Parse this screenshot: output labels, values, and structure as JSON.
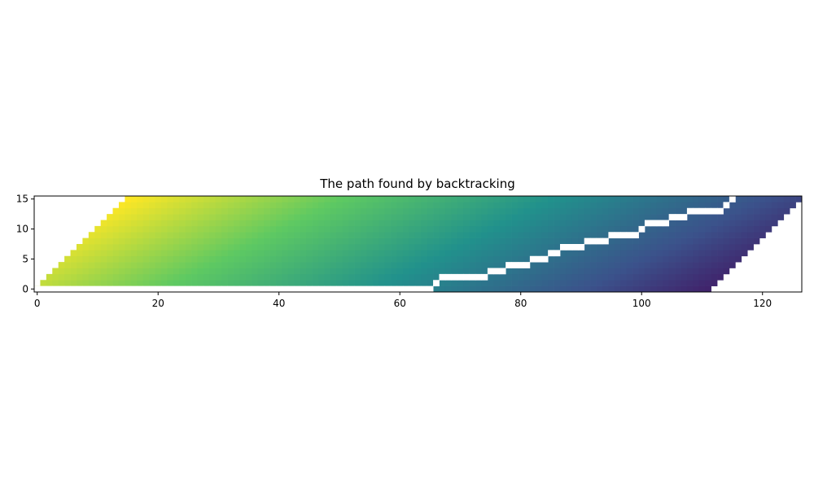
{
  "chart_data": {
    "type": "heatmap",
    "title": "The path found by backtracking",
    "xlabel": "",
    "ylabel": "",
    "x_range": [
      -0.5,
      126.5
    ],
    "y_range": [
      -0.5,
      15.5
    ],
    "x_ticks": [
      0,
      20,
      40,
      60,
      80,
      100,
      120
    ],
    "y_ticks": [
      0,
      5,
      10,
      15
    ],
    "grid": false,
    "legend": "none",
    "colormap": "viridis",
    "rows": 16,
    "columns": 127,
    "path": [
      [
        0,
        0
      ],
      [
        1,
        0
      ],
      [
        2,
        0
      ],
      [
        3,
        0
      ],
      [
        4,
        0
      ],
      [
        5,
        0
      ],
      [
        6,
        0
      ],
      [
        7,
        0
      ],
      [
        8,
        0
      ],
      [
        9,
        0
      ],
      [
        10,
        0
      ],
      [
        11,
        0
      ],
      [
        12,
        0
      ],
      [
        13,
        0
      ],
      [
        14,
        0
      ],
      [
        15,
        0
      ],
      [
        16,
        0
      ],
      [
        17,
        0
      ],
      [
        18,
        0
      ],
      [
        19,
        0
      ],
      [
        20,
        0
      ],
      [
        21,
        0
      ],
      [
        22,
        0
      ],
      [
        23,
        0
      ],
      [
        24,
        0
      ],
      [
        25,
        0
      ],
      [
        26,
        0
      ],
      [
        27,
        0
      ],
      [
        28,
        0
      ],
      [
        29,
        0
      ],
      [
        30,
        0
      ],
      [
        31,
        0
      ],
      [
        32,
        0
      ],
      [
        33,
        0
      ],
      [
        34,
        0
      ],
      [
        35,
        0
      ],
      [
        36,
        0
      ],
      [
        37,
        0
      ],
      [
        38,
        0
      ],
      [
        39,
        0
      ],
      [
        40,
        0
      ],
      [
        41,
        0
      ],
      [
        42,
        0
      ],
      [
        43,
        0
      ],
      [
        44,
        0
      ],
      [
        45,
        0
      ],
      [
        46,
        0
      ],
      [
        47,
        0
      ],
      [
        48,
        0
      ],
      [
        49,
        0
      ],
      [
        50,
        0
      ],
      [
        51,
        0
      ],
      [
        52,
        0
      ],
      [
        53,
        0
      ],
      [
        54,
        0
      ],
      [
        55,
        0
      ],
      [
        56,
        0
      ],
      [
        57,
        0
      ],
      [
        58,
        0
      ],
      [
        59,
        0
      ],
      [
        60,
        0
      ],
      [
        61,
        0
      ],
      [
        62,
        0
      ],
      [
        63,
        0
      ],
      [
        64,
        0
      ],
      [
        65,
        0
      ],
      [
        66,
        1
      ],
      [
        67,
        2
      ],
      [
        68,
        2
      ],
      [
        69,
        2
      ],
      [
        70,
        2
      ],
      [
        71,
        2
      ],
      [
        72,
        2
      ],
      [
        73,
        2
      ],
      [
        74,
        2
      ],
      [
        75,
        3
      ],
      [
        76,
        3
      ],
      [
        77,
        3
      ],
      [
        78,
        4
      ],
      [
        79,
        4
      ],
      [
        80,
        4
      ],
      [
        81,
        4
      ],
      [
        82,
        5
      ],
      [
        83,
        5
      ],
      [
        84,
        5
      ],
      [
        85,
        6
      ],
      [
        86,
        6
      ],
      [
        87,
        7
      ],
      [
        88,
        7
      ],
      [
        89,
        7
      ],
      [
        90,
        7
      ],
      [
        91,
        8
      ],
      [
        92,
        8
      ],
      [
        93,
        8
      ],
      [
        94,
        8
      ],
      [
        95,
        9
      ],
      [
        96,
        9
      ],
      [
        97,
        9
      ],
      [
        98,
        9
      ],
      [
        99,
        9
      ],
      [
        100,
        10
      ],
      [
        101,
        11
      ],
      [
        102,
        11
      ],
      [
        103,
        11
      ],
      [
        104,
        11
      ],
      [
        105,
        12
      ],
      [
        106,
        12
      ],
      [
        107,
        12
      ],
      [
        108,
        13
      ],
      [
        109,
        13
      ],
      [
        110,
        13
      ],
      [
        111,
        13
      ],
      [
        112,
        13
      ],
      [
        113,
        13
      ],
      [
        114,
        14
      ],
      [
        115,
        15
      ]
    ]
  }
}
